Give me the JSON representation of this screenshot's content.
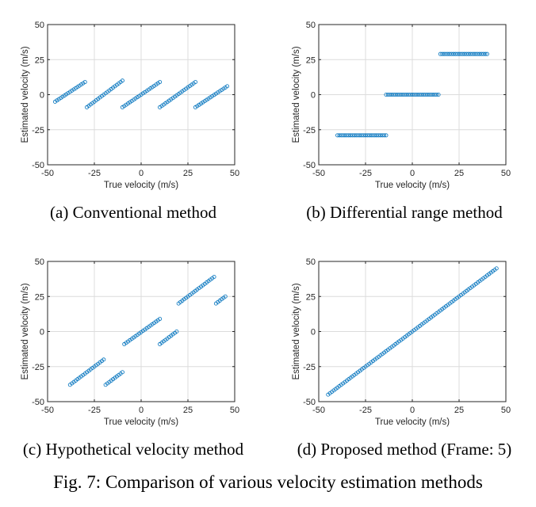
{
  "figure_caption": "Fig. 7: Comparison of various velocity estimation methods",
  "colors": {
    "marker": "#0072bd",
    "grid": "#dcdcdc",
    "axis": "#262626"
  },
  "chart_data": [
    {
      "type": "scatter",
      "caption": "(a) Conventional method",
      "xlabel": "True velocity (m/s)",
      "ylabel": "Estimated velocity (m/s)",
      "xlim": [
        -50,
        50
      ],
      "ylim": [
        -50,
        50
      ],
      "xticks": [
        -50,
        -25,
        0,
        25,
        50
      ],
      "yticks": [
        50,
        25,
        0,
        -25,
        -50
      ],
      "xticklabels": [
        "-50",
        "-25",
        "0",
        "25",
        "50"
      ],
      "yticklabels": [
        "50",
        "25",
        "0",
        "-25",
        "-50"
      ],
      "grid": true,
      "segments": [
        {
          "x_start": -46,
          "x_end": -30,
          "y_start": -5,
          "y_end": 9
        },
        {
          "x_start": -29,
          "x_end": -10,
          "y_start": -9,
          "y_end": 10
        },
        {
          "x_start": -10,
          "x_end": 10,
          "y_start": -9,
          "y_end": 9
        },
        {
          "x_start": 10,
          "x_end": 29,
          "y_start": -9,
          "y_end": 9
        },
        {
          "x_start": 29,
          "x_end": 46,
          "y_start": -9,
          "y_end": 6
        }
      ]
    },
    {
      "type": "scatter",
      "caption": "(b) Differential range method",
      "xlabel": "True velocity (m/s)",
      "ylabel": "Estimated velocity (m/s)",
      "xlim": [
        -50,
        50
      ],
      "ylim": [
        -50,
        50
      ],
      "xticks": [
        -50,
        -25,
        0,
        25,
        50
      ],
      "yticks": [
        50,
        25,
        0,
        -25,
        -50
      ],
      "xticklabels": [
        "-50",
        "-25",
        "0",
        "25",
        "50"
      ],
      "yticklabels": [
        "50",
        "25",
        "0",
        "-25",
        "-50"
      ],
      "grid": true,
      "segments": [
        {
          "x_start": -40,
          "x_end": -14,
          "y_start": -29,
          "y_end": -29
        },
        {
          "x_start": -14,
          "x_end": 14,
          "y_start": 0,
          "y_end": 0
        },
        {
          "x_start": 15,
          "x_end": 40,
          "y_start": 29,
          "y_end": 29
        }
      ]
    },
    {
      "type": "scatter",
      "caption": "(c) Hypothetical velocity method",
      "xlabel": "True velocity (m/s)",
      "ylabel": "Estimated velocity (m/s)",
      "xlim": [
        -50,
        50
      ],
      "ylim": [
        -50,
        50
      ],
      "xticks": [
        -50,
        -25,
        0,
        25,
        50
      ],
      "yticks": [
        50,
        25,
        0,
        -25,
        -50
      ],
      "xticklabels": [
        "-50",
        "-25",
        "0",
        "25",
        "50"
      ],
      "yticklabels": [
        "50",
        "25",
        "0",
        "-25",
        "-50"
      ],
      "grid": true,
      "segments": [
        {
          "x_start": -38,
          "x_end": -20,
          "y_start": -38,
          "y_end": -20
        },
        {
          "x_start": -19,
          "x_end": -10,
          "y_start": -38,
          "y_end": -29
        },
        {
          "x_start": -9,
          "x_end": 10,
          "y_start": -9,
          "y_end": 9
        },
        {
          "x_start": 10,
          "x_end": 19,
          "y_start": -9,
          "y_end": 0
        },
        {
          "x_start": 20,
          "x_end": 39,
          "y_start": 20,
          "y_end": 39
        },
        {
          "x_start": 40,
          "x_end": 45,
          "y_start": 20,
          "y_end": 25
        }
      ]
    },
    {
      "type": "scatter",
      "caption": "(d) Proposed method (Frame: 5)",
      "xlabel": "True velocity (m/s)",
      "ylabel": "Estimated velocity (m/s)",
      "xlim": [
        -50,
        50
      ],
      "ylim": [
        -50,
        50
      ],
      "xticks": [
        -50,
        -25,
        0,
        25,
        50
      ],
      "yticks": [
        50,
        25,
        0,
        -25,
        -50
      ],
      "xticklabels": [
        "-50",
        "-25",
        "0",
        "25",
        "50"
      ],
      "yticklabels": [
        "50",
        "25",
        "0",
        "-25",
        "-50"
      ],
      "grid": true,
      "segments": [
        {
          "x_start": -45,
          "x_end": 45,
          "y_start": -45,
          "y_end": 45
        }
      ]
    }
  ]
}
